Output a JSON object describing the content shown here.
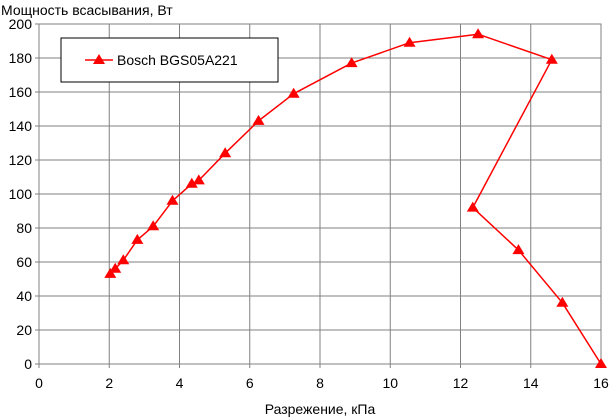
{
  "chart_data": {
    "type": "line",
    "title": "",
    "ylabel": "Мощность всасывания, Вт",
    "xlabel": "Разрежение, кПа",
    "xlim": [
      0,
      16
    ],
    "ylim": [
      0,
      200
    ],
    "x_ticks": [
      0,
      2,
      4,
      6,
      8,
      10,
      12,
      14,
      16
    ],
    "y_ticks": [
      0,
      20,
      40,
      60,
      80,
      100,
      120,
      140,
      160,
      180,
      200
    ],
    "grid": true,
    "legend_position": "top-left",
    "series": [
      {
        "name": "Bosch BGS05A221",
        "color": "#ff0000",
        "marker": "triangle",
        "x": [
          2.03,
          2.17,
          2.4,
          2.8,
          3.25,
          3.8,
          4.35,
          4.55,
          5.3,
          6.25,
          7.25,
          8.9,
          10.55,
          12.5,
          14.6,
          12.35,
          13.65,
          14.9,
          16.0
        ],
        "y": [
          53,
          56,
          61,
          73,
          81,
          96,
          106,
          108,
          124,
          143,
          159,
          177,
          189,
          194,
          179,
          92,
          67,
          36,
          0
        ]
      }
    ]
  }
}
